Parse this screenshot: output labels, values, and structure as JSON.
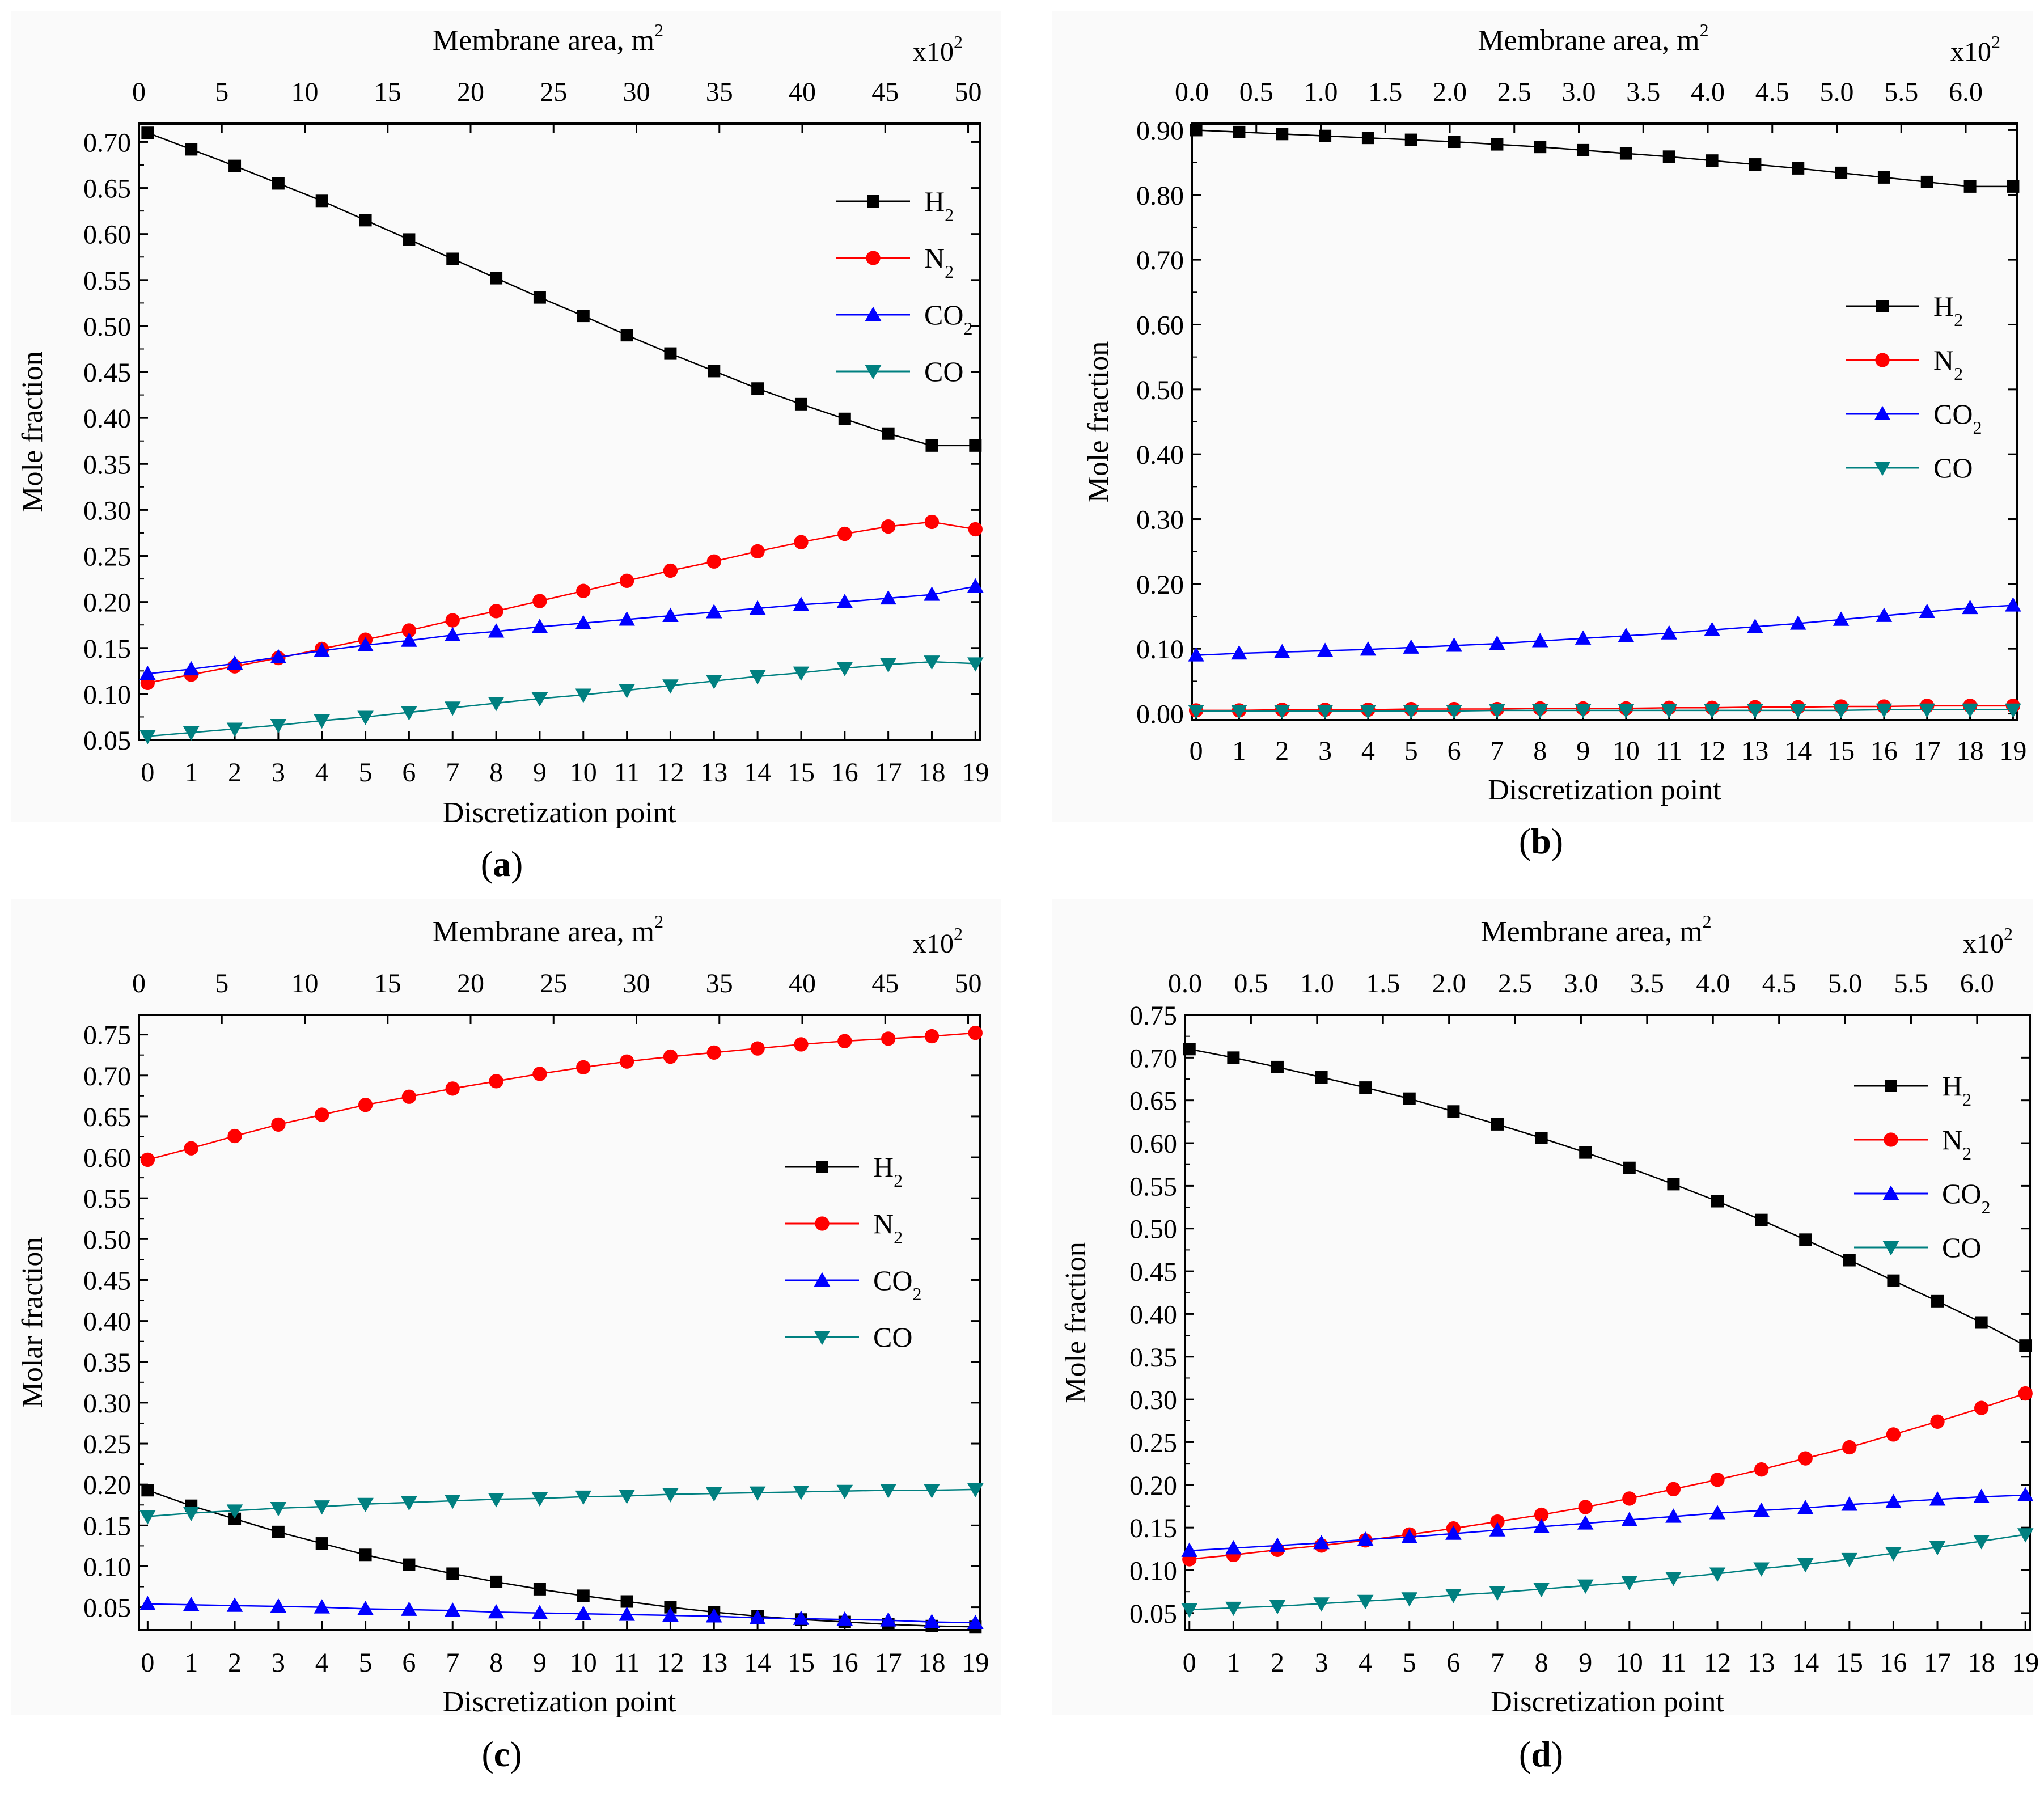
{
  "chart_data": [
    {
      "panel_label": "(a)",
      "type": "line",
      "top_axis": {
        "title": "Membrane area, m",
        "title_sup": "2",
        "multiplier": "x10",
        "multiplier_sup": "2",
        "ticks": [
          "0",
          "5",
          "10",
          "15",
          "20",
          "25",
          "30",
          "35",
          "40",
          "45",
          "50"
        ],
        "range": [
          0,
          50.7
        ]
      },
      "xlabel": "Discretization point",
      "ylabel": "Mole fraction",
      "x": [
        0,
        1,
        2,
        3,
        4,
        5,
        6,
        7,
        8,
        9,
        10,
        11,
        12,
        13,
        14,
        15,
        16,
        17,
        18,
        19
      ],
      "xlim": [
        -0.2,
        19.1
      ],
      "ylim": [
        0.05,
        0.72
      ],
      "yticks": [
        "0.05",
        "0.10",
        "0.15",
        "0.20",
        "0.25",
        "0.30",
        "0.35",
        "0.40",
        "0.45",
        "0.50",
        "0.55",
        "0.60",
        "0.65",
        "0.70"
      ],
      "series": [
        {
          "name": "H",
          "sub": "2",
          "color": "#000000",
          "marker": "square",
          "values": [
            0.71,
            0.692,
            0.674,
            0.655,
            0.636,
            0.615,
            0.594,
            0.573,
            0.552,
            0.531,
            0.511,
            0.49,
            0.47,
            0.451,
            0.432,
            0.415,
            0.399,
            0.383,
            0.37,
            0.37
          ]
        },
        {
          "name": "N",
          "sub": "2",
          "color": "#ff0000",
          "marker": "circle",
          "values": [
            0.112,
            0.121,
            0.13,
            0.139,
            0.149,
            0.159,
            0.169,
            0.18,
            0.19,
            0.201,
            0.212,
            0.223,
            0.234,
            0.244,
            0.255,
            0.265,
            0.274,
            0.282,
            0.287,
            0.279
          ]
        },
        {
          "name": "CO",
          "sub": "2",
          "color": "#0000ff",
          "marker": "triangle-up",
          "values": [
            0.122,
            0.127,
            0.133,
            0.14,
            0.147,
            0.153,
            0.158,
            0.164,
            0.168,
            0.173,
            0.177,
            0.181,
            0.185,
            0.189,
            0.193,
            0.197,
            0.2,
            0.204,
            0.208,
            0.217
          ]
        },
        {
          "name": "CO",
          "sub": "",
          "color": "#008080",
          "marker": "triangle-down",
          "values": [
            0.054,
            0.058,
            0.062,
            0.066,
            0.071,
            0.075,
            0.08,
            0.085,
            0.09,
            0.095,
            0.099,
            0.104,
            0.109,
            0.114,
            0.119,
            0.123,
            0.128,
            0.132,
            0.135,
            0.133
          ]
        }
      ]
    },
    {
      "panel_label": "(b)",
      "type": "line",
      "top_axis": {
        "title": "Membrane area, m",
        "title_sup": "2",
        "multiplier": "x10",
        "multiplier_sup": "2",
        "ticks": [
          "0.0",
          "0.5",
          "1.0",
          "1.5",
          "2.0",
          "2.5",
          "3.0",
          "3.5",
          "4.0",
          "4.5",
          "5.0",
          "5.5",
          "6.0"
        ],
        "range": [
          0,
          6.4
        ]
      },
      "xlabel": "Discretization point",
      "ylabel": "Mole fraction",
      "x": [
        0,
        1,
        2,
        3,
        4,
        5,
        6,
        7,
        8,
        9,
        10,
        11,
        12,
        13,
        14,
        15,
        16,
        17,
        18,
        19
      ],
      "xlim": [
        -0.1,
        19.1
      ],
      "ylim": [
        -0.01,
        0.91
      ],
      "yticks": [
        "0.00",
        "0.10",
        "0.20",
        "0.30",
        "0.40",
        "0.50",
        "0.60",
        "0.70",
        "0.80",
        "0.90"
      ],
      "series": [
        {
          "name": "H",
          "sub": "2",
          "color": "#000000",
          "marker": "square",
          "values": [
            0.9,
            0.897,
            0.894,
            0.891,
            0.888,
            0.885,
            0.882,
            0.878,
            0.874,
            0.869,
            0.864,
            0.859,
            0.853,
            0.847,
            0.841,
            0.834,
            0.827,
            0.82,
            0.813,
            0.813
          ]
        },
        {
          "name": "N",
          "sub": "2",
          "color": "#ff0000",
          "marker": "circle",
          "values": [
            0.005,
            0.005,
            0.006,
            0.006,
            0.006,
            0.007,
            0.007,
            0.007,
            0.008,
            0.008,
            0.008,
            0.009,
            0.009,
            0.01,
            0.01,
            0.011,
            0.011,
            0.012,
            0.012,
            0.012
          ]
        },
        {
          "name": "CO",
          "sub": "2",
          "color": "#0000ff",
          "marker": "triangle-up",
          "values": [
            0.09,
            0.093,
            0.095,
            0.097,
            0.099,
            0.102,
            0.105,
            0.108,
            0.112,
            0.116,
            0.12,
            0.124,
            0.129,
            0.134,
            0.139,
            0.145,
            0.151,
            0.157,
            0.163,
            0.167
          ]
        },
        {
          "name": "CO",
          "sub": "",
          "color": "#008080",
          "marker": "triangle-down",
          "values": [
            0.004,
            0.004,
            0.004,
            0.004,
            0.004,
            0.004,
            0.004,
            0.005,
            0.005,
            0.005,
            0.005,
            0.005,
            0.005,
            0.005,
            0.005,
            0.005,
            0.006,
            0.006,
            0.006,
            0.006
          ]
        }
      ]
    },
    {
      "panel_label": "(c)",
      "type": "line",
      "top_axis": {
        "title": "Membrane area, m",
        "title_sup": "2",
        "multiplier": "x10",
        "multiplier_sup": "2",
        "ticks": [
          "0",
          "5",
          "10",
          "15",
          "20",
          "25",
          "30",
          "35",
          "40",
          "45",
          "50"
        ],
        "range": [
          0,
          50.7
        ]
      },
      "xlabel": "Discretization point",
      "ylabel": "Molar fraction",
      "x": [
        0,
        1,
        2,
        3,
        4,
        5,
        6,
        7,
        8,
        9,
        10,
        11,
        12,
        13,
        14,
        15,
        16,
        17,
        18,
        19
      ],
      "xlim": [
        -0.2,
        19.1
      ],
      "ylim": [
        0.022,
        0.774
      ],
      "yticks": [
        "0.05",
        "0.10",
        "0.15",
        "0.20",
        "0.25",
        "0.30",
        "0.35",
        "0.40",
        "0.45",
        "0.50",
        "0.55",
        "0.60",
        "0.65",
        "0.70",
        "0.75"
      ],
      "series": [
        {
          "name": "H",
          "sub": "2",
          "color": "#000000",
          "marker": "square",
          "values": [
            0.193,
            0.174,
            0.158,
            0.142,
            0.128,
            0.114,
            0.102,
            0.091,
            0.081,
            0.072,
            0.064,
            0.057,
            0.05,
            0.044,
            0.039,
            0.035,
            0.032,
            0.029,
            0.027,
            0.026
          ]
        },
        {
          "name": "N",
          "sub": "2",
          "color": "#ff0000",
          "marker": "circle",
          "values": [
            0.597,
            0.611,
            0.626,
            0.64,
            0.652,
            0.664,
            0.674,
            0.684,
            0.693,
            0.702,
            0.71,
            0.717,
            0.723,
            0.728,
            0.733,
            0.738,
            0.742,
            0.745,
            0.748,
            0.752
          ]
        },
        {
          "name": "CO",
          "sub": "2",
          "color": "#0000ff",
          "marker": "triangle-up",
          "values": [
            0.054,
            0.053,
            0.052,
            0.051,
            0.05,
            0.048,
            0.047,
            0.046,
            0.044,
            0.043,
            0.042,
            0.041,
            0.04,
            0.039,
            0.037,
            0.036,
            0.035,
            0.034,
            0.032,
            0.031
          ]
        },
        {
          "name": "CO",
          "sub": "",
          "color": "#008080",
          "marker": "triangle-down",
          "values": [
            0.161,
            0.165,
            0.168,
            0.171,
            0.173,
            0.176,
            0.178,
            0.18,
            0.182,
            0.183,
            0.185,
            0.186,
            0.188,
            0.189,
            0.19,
            0.191,
            0.192,
            0.193,
            0.193,
            0.194
          ]
        }
      ]
    },
    {
      "panel_label": "(d)",
      "type": "line",
      "top_axis": {
        "title": "Membrane area, m",
        "title_sup": "2",
        "multiplier": "x10",
        "multiplier_sup": "2",
        "ticks": [
          "0.0",
          "0.5",
          "1.0",
          "1.5",
          "2.0",
          "2.5",
          "3.0",
          "3.5",
          "4.0",
          "4.5",
          "5.0",
          "5.5",
          "6.0"
        ],
        "range": [
          0,
          6.4
        ]
      },
      "xlabel": "Discretization point",
      "ylabel": "Mole fraction",
      "x": [
        0,
        1,
        2,
        3,
        4,
        5,
        6,
        7,
        8,
        9,
        10,
        11,
        12,
        13,
        14,
        15,
        16,
        17,
        18,
        19
      ],
      "xlim": [
        -0.1,
        19.1
      ],
      "ylim": [
        0.03,
        0.75
      ],
      "yticks": [
        "0.05",
        "0.10",
        "0.15",
        "0.20",
        "0.25",
        "0.30",
        "0.35",
        "0.40",
        "0.45",
        "0.50",
        "0.55",
        "0.60",
        "0.65",
        "0.70",
        "0.75"
      ],
      "series": [
        {
          "name": "H",
          "sub": "2",
          "color": "#000000",
          "marker": "square",
          "values": [
            0.71,
            0.7,
            0.689,
            0.677,
            0.665,
            0.652,
            0.637,
            0.622,
            0.606,
            0.589,
            0.571,
            0.552,
            0.532,
            0.51,
            0.487,
            0.463,
            0.439,
            0.415,
            0.39,
            0.363
          ]
        },
        {
          "name": "N",
          "sub": "2",
          "color": "#ff0000",
          "marker": "circle",
          "values": [
            0.113,
            0.118,
            0.124,
            0.129,
            0.135,
            0.142,
            0.149,
            0.157,
            0.165,
            0.174,
            0.184,
            0.195,
            0.206,
            0.218,
            0.231,
            0.244,
            0.259,
            0.274,
            0.29,
            0.307
          ]
        },
        {
          "name": "CO",
          "sub": "2",
          "color": "#0000ff",
          "marker": "triangle-up",
          "values": [
            0.123,
            0.126,
            0.129,
            0.132,
            0.136,
            0.139,
            0.143,
            0.147,
            0.151,
            0.155,
            0.159,
            0.163,
            0.167,
            0.17,
            0.173,
            0.177,
            0.18,
            0.183,
            0.186,
            0.188
          ]
        },
        {
          "name": "CO",
          "sub": "",
          "color": "#008080",
          "marker": "triangle-down",
          "values": [
            0.054,
            0.056,
            0.058,
            0.061,
            0.064,
            0.067,
            0.071,
            0.074,
            0.078,
            0.082,
            0.086,
            0.091,
            0.096,
            0.102,
            0.107,
            0.113,
            0.12,
            0.127,
            0.134,
            0.142
          ]
        }
      ]
    }
  ]
}
